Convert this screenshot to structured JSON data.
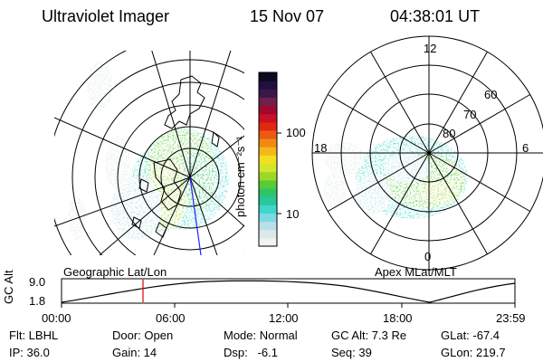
{
  "header": {
    "instrument": "Ultraviolet Imager",
    "date": "15 Nov 07",
    "time": "04:38:01 UT"
  },
  "colorbar": {
    "label": "photon cm⁻²s⁻¹",
    "ticks": [
      "100",
      "10"
    ],
    "colors": [
      "#f2f2f2",
      "#dde8e8",
      "#b8e0e6",
      "#7fd8e6",
      "#3fd6cc",
      "#28c89a",
      "#2fc46a",
      "#58cc34",
      "#9cd82a",
      "#d2e62c",
      "#f2e020",
      "#f4b81c",
      "#f08a14",
      "#ec5a10",
      "#e02a10",
      "#c81028",
      "#a00830",
      "#70204a",
      "#3a1848",
      "#201040",
      "#0a0a20"
    ]
  },
  "left_map": {
    "label": "Geographic Lat/Lon"
  },
  "right_map": {
    "label": "Apex MLat/MLT",
    "mlt_labels": {
      "top": "12",
      "left": "18",
      "right": "6",
      "bottom": "0"
    },
    "lat_labels": [
      "60",
      "70",
      "80"
    ]
  },
  "altitude_plot": {
    "axis_label": "GC Alt",
    "y_ticks": [
      "9.0",
      "1.8"
    ],
    "x_ticks": [
      "00:00",
      "06:00",
      "12:00",
      "18:00",
      "23:59"
    ]
  },
  "footer": {
    "row1": {
      "filter": "Flt: LBHL",
      "door": "Door: Open",
      "mode": "Mode: Normal",
      "gc_alt": "GC Alt: 7.3 Re",
      "glat": "GLat: -67.4"
    },
    "row2": {
      "ip": "IP: 36.0",
      "gain": "Gain: 14",
      "dsp": "Dsp:   -6.1",
      "seq": "Seq: 39",
      "glon": "GLon: 219.7"
    }
  }
}
